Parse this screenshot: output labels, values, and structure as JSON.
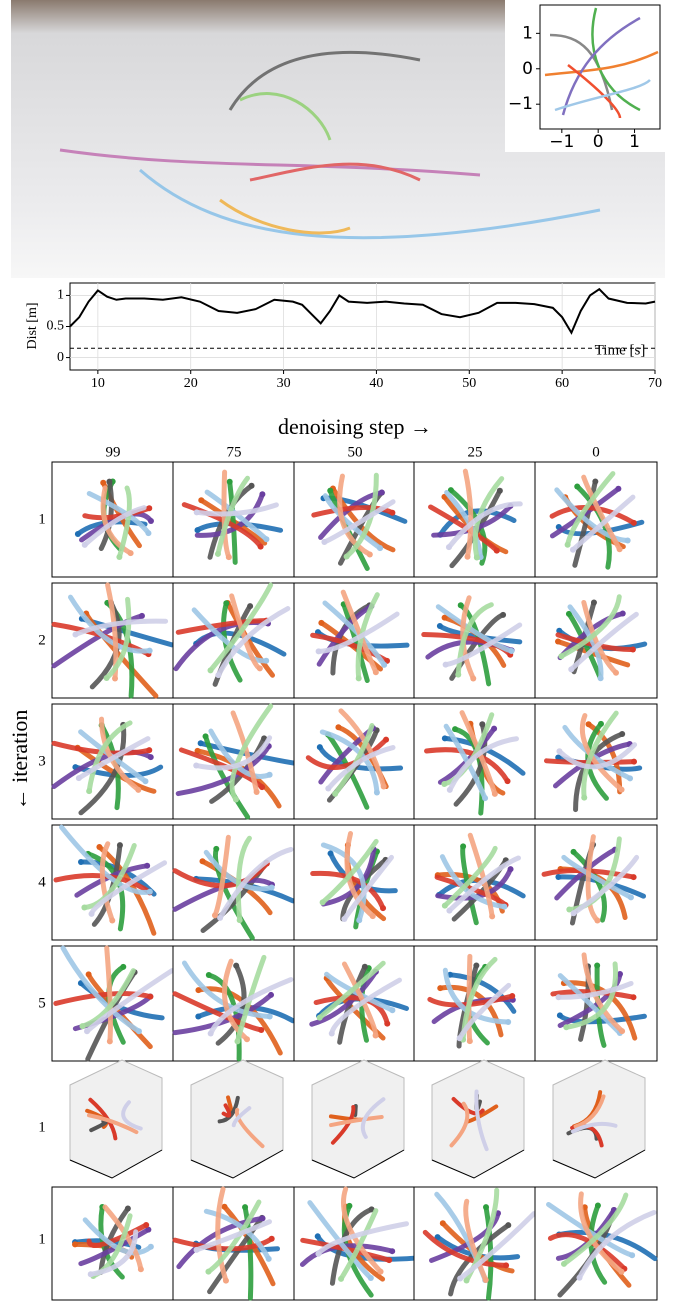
{
  "chart_data": [
    {
      "type": "line",
      "xlim": [
        -1.6,
        1.7
      ],
      "ylim": [
        -1.7,
        1.8
      ],
      "xticks": [
        {
          "value": -1,
          "label": "−1"
        },
        0,
        1
      ],
      "yticks": [
        1,
        0,
        {
          "value": -1,
          "label": "−1"
        }
      ]
    },
    {
      "type": "line",
      "ylabel": "Dist [m]",
      "xlabel": "Time [s]",
      "x": [
        7,
        8,
        9,
        10,
        11,
        12,
        13,
        15,
        17,
        19,
        21,
        23,
        25,
        27,
        29,
        31,
        32,
        33,
        34,
        35,
        36,
        37,
        39,
        41,
        43,
        45,
        47,
        49,
        51,
        53,
        55,
        57,
        59,
        60,
        61,
        62,
        63,
        64,
        65,
        67,
        69,
        70
      ],
      "series": [
        {
          "color": "#000000",
          "values": [
            0.5,
            0.65,
            0.9,
            1.08,
            0.98,
            0.93,
            0.95,
            0.95,
            0.93,
            0.97,
            0.9,
            0.75,
            0.72,
            0.78,
            0.93,
            0.9,
            0.85,
            0.7,
            0.55,
            0.75,
            1.0,
            0.9,
            0.88,
            0.9,
            0.87,
            0.85,
            0.7,
            0.65,
            0.72,
            0.88,
            0.88,
            0.86,
            0.8,
            0.65,
            0.4,
            0.75,
            1.0,
            1.1,
            0.95,
            0.88,
            0.87,
            0.9
          ]
        }
      ],
      "threshold": 0.15,
      "xlim": [
        7,
        70
      ],
      "ylim": [
        -0.2,
        1.2
      ],
      "xticks": [
        10,
        20,
        30,
        40,
        50,
        60,
        70
      ],
      "yticks": [
        0,
        0.5,
        1
      ],
      "grid": true
    }
  ],
  "figure": {
    "header": "denoising step →",
    "side_label": "← iteration",
    "columns": [
      99,
      75,
      50,
      25,
      0
    ],
    "rows": [
      1,
      2,
      3,
      4,
      5
    ],
    "rows_3d": [
      1
    ],
    "rows_2d": [
      1
    ]
  }
}
